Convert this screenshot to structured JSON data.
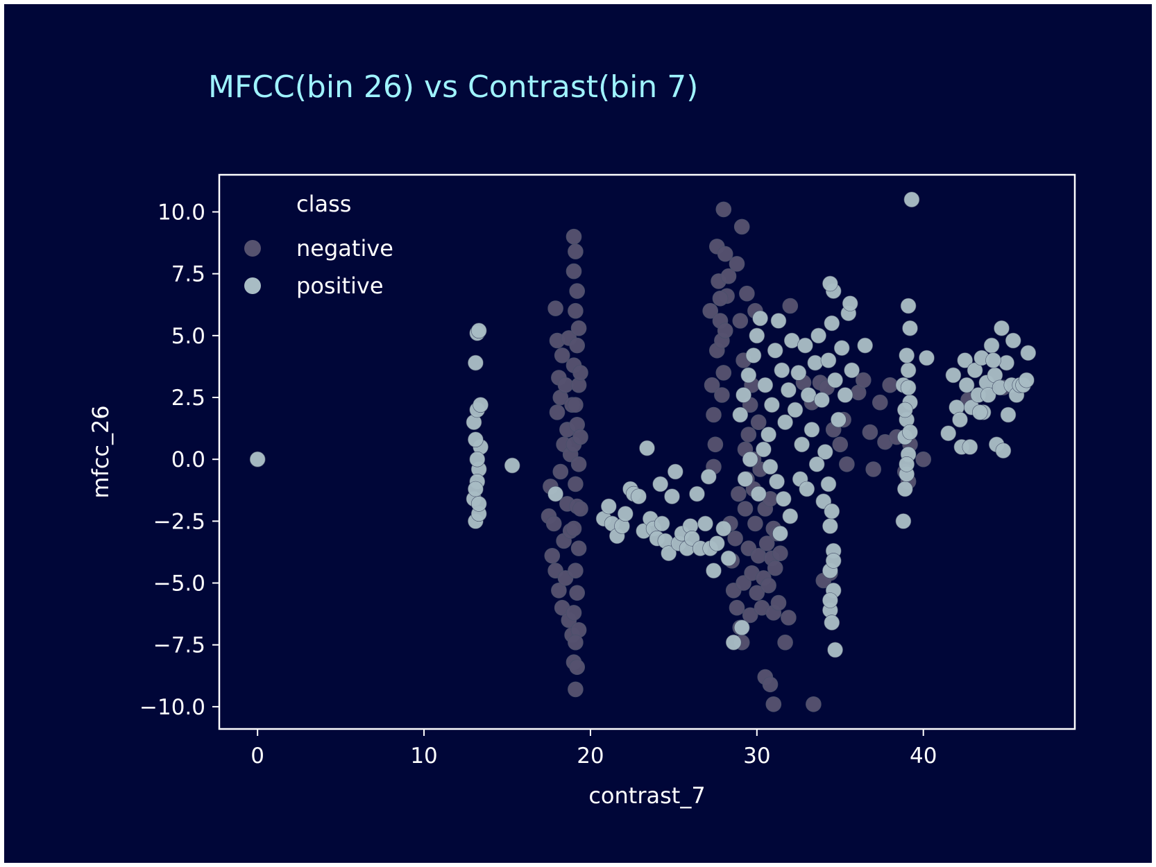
{
  "chart_data": {
    "type": "scatter",
    "title": "MFCC(bin 26) vs Contrast(bin 7)",
    "xlabel": "contrast_7",
    "ylabel": "mfcc_26",
    "xlim": [
      -2.3,
      49.1
    ],
    "ylim": [
      -10.9,
      11.5
    ],
    "xticks": [
      0,
      10,
      20,
      30,
      40
    ],
    "yticks": [
      10.0,
      7.5,
      5.0,
      2.5,
      0.0,
      -2.5,
      -5.0,
      -7.5,
      -10.0
    ],
    "xtick_labels": [
      "0",
      "10",
      "20",
      "30",
      "40"
    ],
    "ytick_labels": [
      "10.0",
      "7.5",
      "5.0",
      "2.5",
      "0.0",
      "−2.5",
      "−5.0",
      "−7.5",
      "−10.0"
    ],
    "grid": false,
    "legend": {
      "title": "class",
      "placement": "top-left",
      "entries": [
        "negative",
        "positive"
      ]
    },
    "colors": {
      "background": "#000638",
      "axes_edge": "#ffffff",
      "title": "#9ff3ff",
      "negative": "#56526f",
      "positive": "#a8bcc4",
      "marker_edge": "#46506a"
    },
    "series": [
      {
        "name": "negative",
        "points": [
          [
            0,
            0
          ],
          [
            17.5,
            -2.3
          ],
          [
            17.6,
            -1.1
          ],
          [
            17.7,
            -3.9
          ],
          [
            17.8,
            -2.6
          ],
          [
            17.9,
            -4.5
          ],
          [
            17.9,
            6.1
          ],
          [
            18.0,
            4.8
          ],
          [
            18.0,
            1.9
          ],
          [
            18.1,
            3.3
          ],
          [
            18.1,
            -5.3
          ],
          [
            18.2,
            -0.5
          ],
          [
            18.2,
            2.5
          ],
          [
            18.3,
            -6.0
          ],
          [
            18.3,
            4.2
          ],
          [
            18.4,
            -3.3
          ],
          [
            18.4,
            0.6
          ],
          [
            18.5,
            3.0
          ],
          [
            18.5,
            -4.8
          ],
          [
            18.6,
            -1.8
          ],
          [
            18.6,
            1.2
          ],
          [
            18.7,
            -6.5
          ],
          [
            18.7,
            4.9
          ],
          [
            18.8,
            -2.9
          ],
          [
            18.8,
            0.2
          ],
          [
            18.9,
            -7.1
          ],
          [
            18.9,
            2.2
          ],
          [
            19.0,
            -8.2
          ],
          [
            19.1,
            -9.3
          ],
          [
            19.2,
            -8.4
          ],
          [
            19.0,
            9.0
          ],
          [
            19.1,
            8.4
          ],
          [
            19.0,
            7.6
          ],
          [
            19.2,
            6.8
          ],
          [
            19.1,
            6.0
          ],
          [
            19.3,
            5.3
          ],
          [
            19.2,
            4.6
          ],
          [
            19.0,
            3.8
          ],
          [
            19.3,
            3.0
          ],
          [
            19.1,
            2.2
          ],
          [
            19.2,
            1.4
          ],
          [
            19.0,
            0.6
          ],
          [
            19.3,
            -0.2
          ],
          [
            19.1,
            -1.0
          ],
          [
            19.2,
            -1.9
          ],
          [
            19.0,
            -2.8
          ],
          [
            19.3,
            -3.6
          ],
          [
            19.1,
            -4.5
          ],
          [
            19.2,
            -5.4
          ],
          [
            19.0,
            -6.2
          ],
          [
            19.3,
            -6.9
          ],
          [
            19.1,
            -7.4
          ],
          [
            19.4,
            3.5
          ],
          [
            19.4,
            -2.0
          ],
          [
            19.4,
            0.9
          ],
          [
            27.2,
            6.0
          ],
          [
            27.3,
            3.0
          ],
          [
            27.4,
            1.8
          ],
          [
            27.4,
            -0.3
          ],
          [
            27.5,
            0.6
          ],
          [
            27.6,
            8.6
          ],
          [
            27.7,
            7.2
          ],
          [
            27.6,
            4.4
          ],
          [
            27.8,
            5.6
          ],
          [
            27.9,
            2.6
          ],
          [
            28.0,
            10.1
          ],
          [
            28.1,
            8.3
          ],
          [
            28.2,
            6.6
          ],
          [
            27.9,
            4.8
          ],
          [
            28.0,
            3.5
          ],
          [
            28.3,
            7.4
          ],
          [
            27.8,
            6.5
          ],
          [
            28.1,
            5.2
          ],
          [
            28.4,
            -2.6
          ],
          [
            28.5,
            -4.1
          ],
          [
            28.6,
            -5.3
          ],
          [
            28.7,
            -3.2
          ],
          [
            28.8,
            -6.0
          ],
          [
            28.9,
            -1.4
          ],
          [
            29.0,
            -6.8
          ],
          [
            29.1,
            -7.4
          ],
          [
            29.2,
            -5.0
          ],
          [
            29.3,
            -2.0
          ],
          [
            29.4,
            -0.8
          ],
          [
            29.5,
            -3.6
          ],
          [
            29.6,
            -6.3
          ],
          [
            29.7,
            -4.6
          ],
          [
            29.8,
            -1.2
          ],
          [
            29.9,
            -2.6
          ],
          [
            30.0,
            -5.4
          ],
          [
            30.1,
            -3.9
          ],
          [
            30.2,
            -0.4
          ],
          [
            30.3,
            -6.0
          ],
          [
            30.4,
            -4.8
          ],
          [
            30.5,
            -2.0
          ],
          [
            30.6,
            -3.4
          ],
          [
            30.7,
            -5.1
          ],
          [
            30.8,
            -1.6
          ],
          [
            30.9,
            -4.0
          ],
          [
            31.0,
            -2.8
          ],
          [
            31.1,
            -4.4
          ],
          [
            31.2,
            -3.0
          ],
          [
            31.4,
            -3.8
          ],
          [
            29.0,
            5.6
          ],
          [
            29.2,
            4.0
          ],
          [
            29.4,
            6.7
          ],
          [
            29.6,
            2.2
          ],
          [
            29.3,
            0.4
          ],
          [
            29.5,
            1.0
          ],
          [
            29.7,
            3.0
          ],
          [
            29.8,
            0.0
          ],
          [
            29.1,
            9.4
          ],
          [
            28.8,
            7.9
          ],
          [
            29.9,
            6.0
          ],
          [
            30.1,
            1.5
          ],
          [
            30.5,
            -8.8
          ],
          [
            30.8,
            -9.1
          ],
          [
            31.0,
            -9.9
          ],
          [
            31.7,
            -7.4
          ],
          [
            31.9,
            -6.4
          ],
          [
            31.0,
            -6.2
          ],
          [
            31.3,
            -5.8
          ],
          [
            32.0,
            6.2
          ],
          [
            33.4,
            -9.9
          ],
          [
            33.8,
            3.1
          ],
          [
            34.2,
            2.9
          ],
          [
            34.6,
            1.2
          ],
          [
            35.0,
            0.6
          ],
          [
            35.4,
            -0.2
          ],
          [
            35.2,
            1.6
          ],
          [
            36.1,
            2.7
          ],
          [
            36.4,
            3.2
          ],
          [
            36.8,
            1.1
          ],
          [
            37.0,
            -0.4
          ],
          [
            37.4,
            2.3
          ],
          [
            37.7,
            0.7
          ],
          [
            38.0,
            3.0
          ],
          [
            38.4,
            0.9
          ],
          [
            38.9,
            -0.5
          ],
          [
            39.2,
            0.6
          ],
          [
            39.1,
            -0.9
          ],
          [
            40.0,
            0.0
          ],
          [
            34.4,
            -4.6
          ],
          [
            34.0,
            -4.9
          ],
          [
            42.7,
            2.4
          ],
          [
            44.8,
            2.9
          ],
          [
            33.3,
            2.3
          ],
          [
            32.8,
            3.1
          ]
        ]
      },
      {
        "name": "positive",
        "points": [
          [
            0,
            0
          ],
          [
            13.0,
            1.5
          ],
          [
            13.1,
            3.9
          ],
          [
            13.2,
            5.1
          ],
          [
            13.3,
            5.2
          ],
          [
            13.2,
            2.0
          ],
          [
            13.1,
            -2.5
          ],
          [
            13.0,
            -1.6
          ],
          [
            13.3,
            -0.4
          ],
          [
            13.2,
            -0.9
          ],
          [
            13.4,
            0.5
          ],
          [
            13.1,
            -1.2
          ],
          [
            13.3,
            -2.2
          ],
          [
            13.4,
            2.2
          ],
          [
            13.2,
            0.0
          ],
          [
            13.3,
            -1.8
          ],
          [
            13.1,
            0.8
          ],
          [
            15.3,
            -0.25
          ],
          [
            17.9,
            -1.4
          ],
          [
            20.8,
            -2.4
          ],
          [
            21.1,
            -1.9
          ],
          [
            21.3,
            -2.6
          ],
          [
            21.6,
            -3.1
          ],
          [
            21.9,
            -2.7
          ],
          [
            22.1,
            -2.2
          ],
          [
            22.4,
            -1.2
          ],
          [
            22.6,
            -1.4
          ],
          [
            22.9,
            -1.5
          ],
          [
            23.2,
            -2.9
          ],
          [
            23.4,
            0.45
          ],
          [
            23.6,
            -2.4
          ],
          [
            23.8,
            -2.8
          ],
          [
            24.0,
            -3.2
          ],
          [
            24.2,
            -1.0
          ],
          [
            24.3,
            -2.6
          ],
          [
            24.5,
            -3.3
          ],
          [
            24.7,
            -3.8
          ],
          [
            24.9,
            -1.5
          ],
          [
            25.1,
            -0.5
          ],
          [
            25.3,
            -3.4
          ],
          [
            25.5,
            -3.0
          ],
          [
            25.8,
            -3.6
          ],
          [
            26.0,
            -2.7
          ],
          [
            26.1,
            -3.2
          ],
          [
            26.4,
            -1.4
          ],
          [
            26.6,
            -3.6
          ],
          [
            26.9,
            -2.6
          ],
          [
            27.2,
            -3.6
          ],
          [
            27.4,
            -4.5
          ],
          [
            27.1,
            -0.7
          ],
          [
            27.6,
            -3.4
          ],
          [
            28.0,
            -2.8
          ],
          [
            28.3,
            -4.0
          ],
          [
            28.6,
            -7.4
          ],
          [
            29.1,
            -6.8
          ],
          [
            29.0,
            1.8
          ],
          [
            29.2,
            2.6
          ],
          [
            29.5,
            3.4
          ],
          [
            29.8,
            4.2
          ],
          [
            30.0,
            5.0
          ],
          [
            30.2,
            5.7
          ],
          [
            30.5,
            3.0
          ],
          [
            30.7,
            1.0
          ],
          [
            30.9,
            2.2
          ],
          [
            31.1,
            4.4
          ],
          [
            31.3,
            5.6
          ],
          [
            31.5,
            3.6
          ],
          [
            31.7,
            1.5
          ],
          [
            31.9,
            2.8
          ],
          [
            32.1,
            4.8
          ],
          [
            32.3,
            2.0
          ],
          [
            32.5,
            3.5
          ],
          [
            32.7,
            0.6
          ],
          [
            32.9,
            4.6
          ],
          [
            33.1,
            2.6
          ],
          [
            33.3,
            1.2
          ],
          [
            33.5,
            3.9
          ],
          [
            33.7,
            5.0
          ],
          [
            33.9,
            2.4
          ],
          [
            34.1,
            0.3
          ],
          [
            34.3,
            4.0
          ],
          [
            34.5,
            5.5
          ],
          [
            34.7,
            3.2
          ],
          [
            34.9,
            1.6
          ],
          [
            35.1,
            4.5
          ],
          [
            35.3,
            2.6
          ],
          [
            35.5,
            5.9
          ],
          [
            35.7,
            3.6
          ],
          [
            34.6,
            6.8
          ],
          [
            34.4,
            7.1
          ],
          [
            35.6,
            6.3
          ],
          [
            36.5,
            4.6
          ],
          [
            30.4,
            0.4
          ],
          [
            30.8,
            -0.3
          ],
          [
            31.2,
            -0.9
          ],
          [
            31.6,
            -1.6
          ],
          [
            32.0,
            -2.3
          ],
          [
            29.6,
            0.0
          ],
          [
            29.3,
            -0.8
          ],
          [
            31.4,
            -3.0
          ],
          [
            30.1,
            -1.4
          ],
          [
            32.6,
            -0.8
          ],
          [
            33.0,
            -1.2
          ],
          [
            33.6,
            -0.2
          ],
          [
            34.0,
            -1.7
          ],
          [
            34.4,
            -2.7
          ],
          [
            34.6,
            -3.7
          ],
          [
            34.4,
            -4.5
          ],
          [
            34.6,
            -5.3
          ],
          [
            34.4,
            -6.1
          ],
          [
            34.5,
            -6.6
          ],
          [
            34.7,
            -7.7
          ],
          [
            34.5,
            -2.1
          ],
          [
            34.3,
            -1.0
          ],
          [
            34.6,
            -4.1
          ],
          [
            34.4,
            -5.7
          ],
          [
            38.8,
            -2.5
          ],
          [
            38.9,
            -1.2
          ],
          [
            39.0,
            -0.6
          ],
          [
            39.1,
            0.2
          ],
          [
            38.9,
            0.9
          ],
          [
            39.0,
            1.6
          ],
          [
            39.2,
            2.3
          ],
          [
            38.8,
            3.0
          ],
          [
            39.1,
            3.6
          ],
          [
            39.0,
            4.2
          ],
          [
            39.2,
            5.3
          ],
          [
            39.1,
            6.2
          ],
          [
            39.3,
            10.5
          ],
          [
            38.9,
            2.0
          ],
          [
            39.2,
            1.1
          ],
          [
            39.0,
            -0.2
          ],
          [
            39.1,
            2.9
          ],
          [
            40.2,
            4.1
          ],
          [
            41.5,
            1.05
          ],
          [
            41.8,
            3.4
          ],
          [
            42.0,
            2.1
          ],
          [
            42.2,
            1.6
          ],
          [
            42.3,
            0.5
          ],
          [
            42.5,
            4.0
          ],
          [
            42.6,
            3.0
          ],
          [
            42.8,
            0.5
          ],
          [
            42.9,
            2.1
          ],
          [
            43.1,
            3.6
          ],
          [
            43.3,
            2.6
          ],
          [
            43.5,
            4.1
          ],
          [
            43.6,
            1.9
          ],
          [
            43.8,
            3.1
          ],
          [
            43.9,
            2.6
          ],
          [
            44.1,
            4.6
          ],
          [
            44.3,
            3.4
          ],
          [
            44.4,
            0.6
          ],
          [
            44.6,
            2.9
          ],
          [
            44.7,
            5.3
          ],
          [
            44.8,
            0.35
          ],
          [
            45.0,
            3.9
          ],
          [
            45.1,
            1.8
          ],
          [
            45.3,
            3.0
          ],
          [
            45.4,
            4.8
          ],
          [
            45.6,
            2.6
          ],
          [
            45.8,
            3.0
          ],
          [
            46.0,
            3.0
          ],
          [
            46.2,
            3.2
          ],
          [
            46.3,
            4.3
          ],
          [
            44.2,
            4.0
          ],
          [
            43.4,
            1.9
          ]
        ]
      }
    ]
  }
}
